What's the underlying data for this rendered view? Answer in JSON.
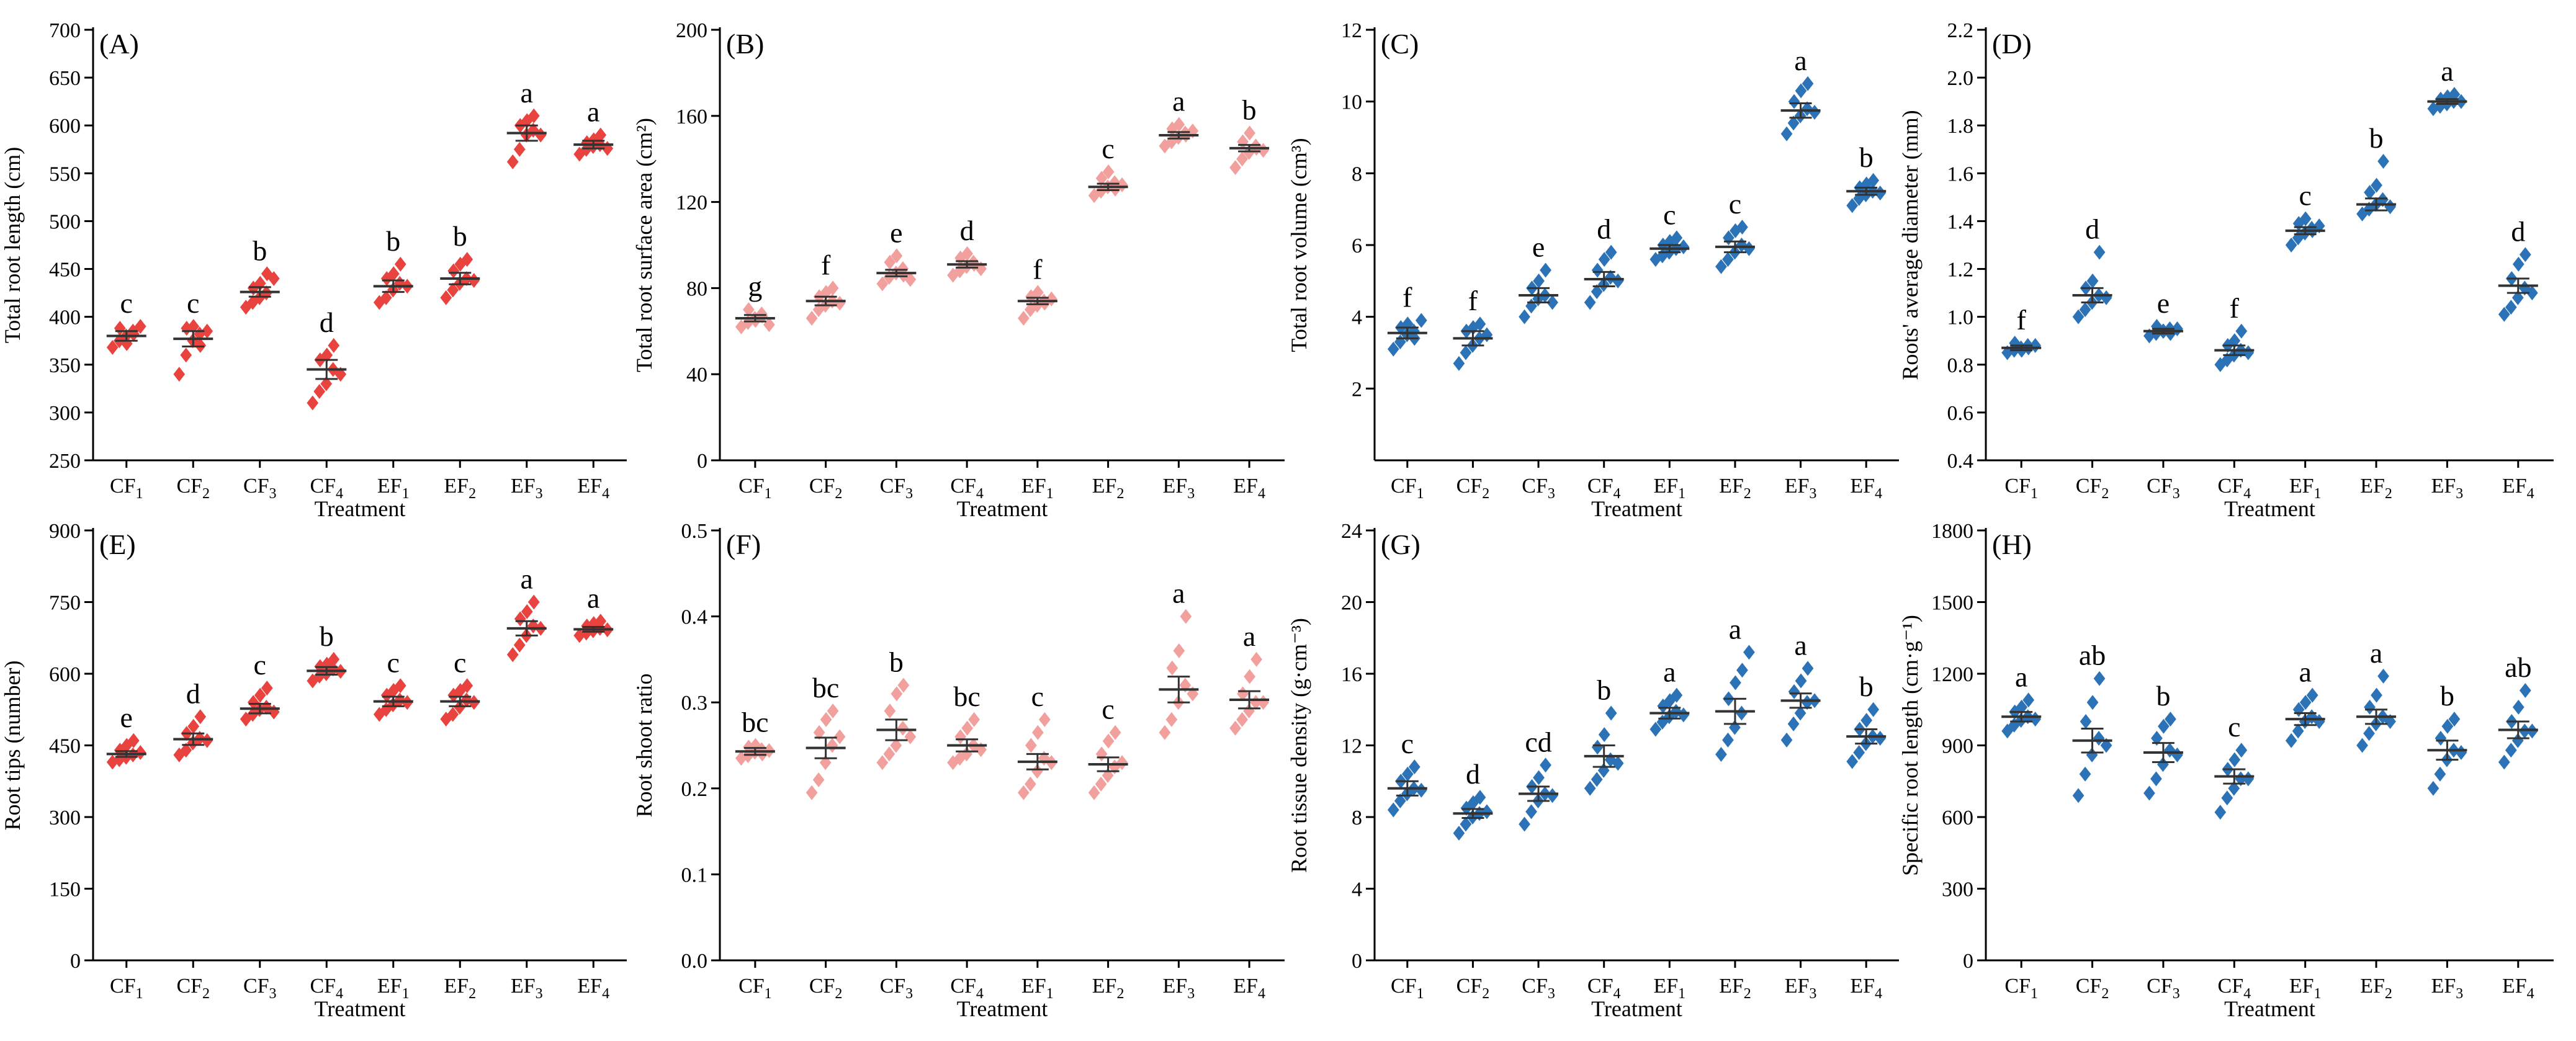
{
  "figure": {
    "description": "Eight-panel root trait comparison across treatments"
  },
  "colors": {
    "red": "#e8433f",
    "pink": "#f2a09d",
    "blue": "#2b73b6",
    "axis": "#000000"
  },
  "chart_data": [
    {
      "id": "A",
      "panel_label": "(A)",
      "type": "scatter",
      "ylabel": "Total root length (cm)",
      "xlabel": "Treatment",
      "ylim": [
        250,
        700
      ],
      "yticks": [
        250,
        300,
        350,
        400,
        450,
        500,
        550,
        600,
        650,
        700
      ],
      "categories": [
        [
          "CF",
          "1"
        ],
        [
          "CF",
          "2"
        ],
        [
          "CF",
          "3"
        ],
        [
          "CF",
          "4"
        ],
        [
          "EF",
          "1"
        ],
        [
          "EF",
          "2"
        ],
        [
          "EF",
          "3"
        ],
        [
          "EF",
          "4"
        ]
      ],
      "color": "red",
      "means": [
        380,
        377,
        426,
        345,
        432,
        440,
        592,
        580
      ],
      "sem": [
        5,
        8,
        5,
        10,
        6,
        6,
        8,
        4
      ],
      "letters": [
        "c",
        "c",
        "b",
        "d",
        "b",
        "b",
        "a",
        "a"
      ],
      "points": [
        [
          368,
          375,
          380,
          385,
          388,
          372,
          382,
          390
        ],
        [
          340,
          360,
          375,
          382,
          388,
          390,
          370,
          385
        ],
        [
          410,
          415,
          420,
          425,
          430,
          435,
          445,
          440
        ],
        [
          310,
          322,
          330,
          345,
          355,
          360,
          370,
          340
        ],
        [
          415,
          420,
          428,
          435,
          440,
          445,
          455,
          432
        ],
        [
          420,
          428,
          435,
          440,
          448,
          455,
          460,
          438
        ],
        [
          562,
          575,
          590,
          595,
          600,
          605,
          610,
          590
        ],
        [
          570,
          575,
          578,
          580,
          582,
          585,
          590,
          576
        ]
      ]
    },
    {
      "id": "B",
      "panel_label": "(B)",
      "type": "scatter",
      "ylabel": "Total root surface area (cm²)",
      "xlabel": "Treatment",
      "ylim": [
        0,
        200
      ],
      "yticks": [
        0,
        40,
        80,
        120,
        160,
        200
      ],
      "categories": [
        [
          "CF",
          "1"
        ],
        [
          "CF",
          "2"
        ],
        [
          "CF",
          "3"
        ],
        [
          "CF",
          "4"
        ],
        [
          "EF",
          "1"
        ],
        [
          "EF",
          "2"
        ],
        [
          "EF",
          "3"
        ],
        [
          "EF",
          "4"
        ]
      ],
      "color": "pink",
      "means": [
        66,
        74,
        87,
        91,
        74,
        127,
        151,
        145
      ],
      "sem": [
        1.5,
        2,
        1.5,
        1.5,
        1.5,
        1.5,
        1.5,
        1.5
      ],
      "letters": [
        "g",
        "f",
        "e",
        "d",
        "f",
        "c",
        "a",
        "b"
      ],
      "points": [
        [
          62,
          64,
          66,
          68,
          70,
          65,
          67,
          63
        ],
        [
          66,
          70,
          72,
          74,
          76,
          78,
          80,
          73
        ],
        [
          82,
          85,
          87,
          89,
          92,
          95,
          86,
          84
        ],
        [
          86,
          88,
          90,
          92,
          94,
          96,
          91,
          89
        ],
        [
          66,
          70,
          72,
          74,
          76,
          78,
          73,
          75
        ],
        [
          123,
          125,
          127,
          129,
          131,
          134,
          126,
          128
        ],
        [
          146,
          148,
          150,
          152,
          154,
          156,
          151,
          153
        ],
        [
          136,
          140,
          143,
          146,
          148,
          152,
          145,
          144
        ]
      ]
    },
    {
      "id": "C",
      "panel_label": "(C)",
      "type": "scatter",
      "ylabel": "Total root volume (cm³)",
      "xlabel": "Treatment",
      "ylim": [
        0,
        12
      ],
      "yticks": [
        2,
        4,
        6,
        8,
        10,
        12
      ],
      "categories": [
        [
          "CF",
          "1"
        ],
        [
          "CF",
          "2"
        ],
        [
          "CF",
          "3"
        ],
        [
          "CF",
          "4"
        ],
        [
          "EF",
          "1"
        ],
        [
          "EF",
          "2"
        ],
        [
          "EF",
          "3"
        ],
        [
          "EF",
          "4"
        ]
      ],
      "color": "blue",
      "means": [
        3.55,
        3.4,
        4.6,
        5.05,
        5.9,
        5.95,
        9.75,
        7.5
      ],
      "sem": [
        0.15,
        0.2,
        0.2,
        0.2,
        0.1,
        0.15,
        0.2,
        0.1
      ],
      "letters": [
        "f",
        "f",
        "e",
        "d",
        "c",
        "c",
        "a",
        "b"
      ],
      "points": [
        [
          3.1,
          3.3,
          3.5,
          3.6,
          3.7,
          3.8,
          3.4,
          3.9
        ],
        [
          2.7,
          3.0,
          3.2,
          3.4,
          3.6,
          3.7,
          3.8,
          3.5
        ],
        [
          4.0,
          4.3,
          4.5,
          4.6,
          4.8,
          5.0,
          5.3,
          4.4
        ],
        [
          4.4,
          4.7,
          4.9,
          5.1,
          5.3,
          5.6,
          5.8,
          5.0
        ],
        [
          5.6,
          5.7,
          5.8,
          5.9,
          6.0,
          6.1,
          6.2,
          5.95
        ],
        [
          5.4,
          5.6,
          5.8,
          6.0,
          6.2,
          6.4,
          6.5,
          5.9
        ],
        [
          9.1,
          9.4,
          9.6,
          9.8,
          10.0,
          10.3,
          10.5,
          9.7
        ],
        [
          7.1,
          7.3,
          7.4,
          7.5,
          7.6,
          7.7,
          7.8,
          7.45
        ]
      ]
    },
    {
      "id": "D",
      "panel_label": "(D)",
      "type": "scatter",
      "ylabel": "Roots' average diameter (mm)",
      "xlabel": "Treatment",
      "ylim": [
        0.4,
        2.2
      ],
      "yticks": [
        0.4,
        0.6,
        0.8,
        1.0,
        1.2,
        1.4,
        1.6,
        1.8,
        2.0,
        2.2
      ],
      "categories": [
        [
          "CF",
          "1"
        ],
        [
          "CF",
          "2"
        ],
        [
          "CF",
          "3"
        ],
        [
          "CF",
          "4"
        ],
        [
          "EF",
          "1"
        ],
        [
          "EF",
          "2"
        ],
        [
          "EF",
          "3"
        ],
        [
          "EF",
          "4"
        ]
      ],
      "color": "blue",
      "means": [
        0.87,
        1.09,
        0.94,
        0.86,
        1.36,
        1.47,
        1.9,
        1.13
      ],
      "sem": [
        0.01,
        0.03,
        0.01,
        0.02,
        0.015,
        0.025,
        0.01,
        0.03
      ],
      "letters": [
        "f",
        "d",
        "e",
        "f",
        "c",
        "b",
        "a",
        "d"
      ],
      "points": [
        [
          0.85,
          0.86,
          0.87,
          0.88,
          0.89,
          0.86,
          0.87,
          0.88
        ],
        [
          1.0,
          1.03,
          1.06,
          1.09,
          1.12,
          1.15,
          1.27,
          1.08
        ],
        [
          0.92,
          0.93,
          0.94,
          0.95,
          0.96,
          0.94,
          0.93,
          0.95
        ],
        [
          0.8,
          0.82,
          0.84,
          0.86,
          0.88,
          0.9,
          0.94,
          0.85
        ],
        [
          1.3,
          1.33,
          1.35,
          1.37,
          1.39,
          1.41,
          1.36,
          1.38
        ],
        [
          1.43,
          1.45,
          1.47,
          1.49,
          1.52,
          1.55,
          1.65,
          1.46
        ],
        [
          1.87,
          1.88,
          1.89,
          1.9,
          1.91,
          1.92,
          1.93,
          1.9
        ],
        [
          1.01,
          1.04,
          1.08,
          1.12,
          1.16,
          1.22,
          1.26,
          1.1
        ]
      ]
    },
    {
      "id": "E",
      "panel_label": "(E)",
      "type": "scatter",
      "ylabel": "Root tips (number)",
      "xlabel": "Treatment",
      "ylim": [
        0,
        900
      ],
      "yticks": [
        0,
        150,
        300,
        450,
        600,
        750,
        900
      ],
      "categories": [
        [
          "CF",
          "1"
        ],
        [
          "CF",
          "2"
        ],
        [
          "CF",
          "3"
        ],
        [
          "CF",
          "4"
        ],
        [
          "EF",
          "1"
        ],
        [
          "EF",
          "2"
        ],
        [
          "EF",
          "3"
        ],
        [
          "EF",
          "4"
        ]
      ],
      "color": "red",
      "means": [
        432,
        463,
        527,
        606,
        542,
        542,
        695,
        693
      ],
      "sem": [
        6,
        12,
        10,
        8,
        10,
        10,
        15,
        5
      ],
      "letters": [
        "e",
        "d",
        "c",
        "b",
        "c",
        "c",
        "a",
        "a"
      ],
      "points": [
        [
          415,
          420,
          425,
          430,
          440,
          450,
          460,
          435
        ],
        [
          430,
          440,
          455,
          465,
          475,
          490,
          510,
          460
        ],
        [
          505,
          515,
          525,
          530,
          540,
          555,
          570,
          520
        ],
        [
          585,
          595,
          600,
          610,
          615,
          620,
          630,
          605
        ],
        [
          515,
          525,
          535,
          545,
          555,
          565,
          575,
          540
        ],
        [
          505,
          515,
          530,
          545,
          555,
          565,
          575,
          540
        ],
        [
          640,
          660,
          680,
          700,
          715,
          730,
          750,
          695
        ],
        [
          680,
          685,
          690,
          695,
          700,
          705,
          710,
          692
        ]
      ]
    },
    {
      "id": "F",
      "panel_label": "(F)",
      "type": "scatter",
      "ylabel": "Root shoot ratio",
      "xlabel": "Treatment",
      "ylim": [
        0,
        0.5
      ],
      "yticks": [
        0.0,
        0.1,
        0.2,
        0.3,
        0.4,
        0.5
      ],
      "categories": [
        [
          "CF",
          "1"
        ],
        [
          "CF",
          "2"
        ],
        [
          "CF",
          "3"
        ],
        [
          "CF",
          "4"
        ],
        [
          "EF",
          "1"
        ],
        [
          "EF",
          "2"
        ],
        [
          "EF",
          "3"
        ],
        [
          "EF",
          "4"
        ]
      ],
      "color": "pink",
      "means": [
        0.243,
        0.247,
        0.268,
        0.25,
        0.231,
        0.228,
        0.315,
        0.303
      ],
      "sem": [
        0.004,
        0.012,
        0.012,
        0.007,
        0.009,
        0.008,
        0.015,
        0.01
      ],
      "letters": [
        "bc",
        "bc",
        "b",
        "bc",
        "c",
        "c",
        "a",
        "a"
      ],
      "points": [
        [
          0.235,
          0.238,
          0.242,
          0.245,
          0.248,
          0.25,
          0.24,
          0.244
        ],
        [
          0.195,
          0.21,
          0.23,
          0.25,
          0.265,
          0.28,
          0.29,
          0.26
        ],
        [
          0.23,
          0.24,
          0.25,
          0.27,
          0.29,
          0.31,
          0.32,
          0.26
        ],
        [
          0.23,
          0.235,
          0.24,
          0.25,
          0.26,
          0.27,
          0.28,
          0.245
        ],
        [
          0.195,
          0.205,
          0.22,
          0.235,
          0.25,
          0.265,
          0.28,
          0.23
        ],
        [
          0.195,
          0.205,
          0.215,
          0.225,
          0.24,
          0.255,
          0.265,
          0.23
        ],
        [
          0.265,
          0.28,
          0.3,
          0.32,
          0.34,
          0.36,
          0.4,
          0.31
        ],
        [
          0.27,
          0.28,
          0.29,
          0.3,
          0.31,
          0.33,
          0.35,
          0.3
        ]
      ]
    },
    {
      "id": "G",
      "panel_label": "(G)",
      "type": "scatter",
      "ylabel": "Root tissue density (g·cm⁻³)",
      "xlabel": "Treatment",
      "ylim": [
        0,
        24
      ],
      "yticks": [
        0,
        4,
        8,
        12,
        16,
        20,
        24
      ],
      "categories": [
        [
          "CF",
          "1"
        ],
        [
          "CF",
          "2"
        ],
        [
          "CF",
          "3"
        ],
        [
          "CF",
          "4"
        ],
        [
          "EF",
          "1"
        ],
        [
          "EF",
          "2"
        ],
        [
          "EF",
          "3"
        ],
        [
          "EF",
          "4"
        ]
      ],
      "color": "blue",
      "means": [
        9.6,
        8.2,
        9.3,
        11.4,
        13.8,
        13.9,
        14.5,
        12.5
      ],
      "sem": [
        0.4,
        0.25,
        0.4,
        0.6,
        0.3,
        0.7,
        0.4,
        0.4
      ],
      "letters": [
        "c",
        "d",
        "cd",
        "b",
        "a",
        "a",
        "a",
        "b"
      ],
      "points": [
        [
          8.4,
          8.9,
          9.3,
          9.6,
          10.0,
          10.4,
          10.8,
          9.5
        ],
        [
          7.1,
          7.6,
          8.0,
          8.2,
          8.5,
          8.8,
          9.1,
          8.3
        ],
        [
          7.6,
          8.3,
          8.9,
          9.3,
          9.7,
          10.2,
          10.9,
          9.2
        ],
        [
          9.6,
          10.1,
          10.6,
          11.2,
          11.9,
          12.6,
          13.8,
          11.0
        ],
        [
          12.9,
          13.3,
          13.6,
          13.9,
          14.2,
          14.5,
          14.8,
          13.7
        ],
        [
          11.5,
          12.3,
          13.0,
          13.8,
          14.6,
          15.5,
          16.2,
          17.2
        ],
        [
          12.3,
          13.2,
          13.8,
          14.4,
          15.0,
          15.6,
          16.3,
          14.5
        ],
        [
          11.1,
          11.6,
          12.1,
          12.5,
          12.9,
          13.4,
          14.0,
          12.4
        ]
      ]
    },
    {
      "id": "H",
      "panel_label": "(H)",
      "type": "scatter",
      "ylabel": "Specific root length (cm·g⁻¹)",
      "xlabel": "Treatment",
      "ylim": [
        0,
        1800
      ],
      "yticks": [
        0,
        300,
        600,
        900,
        1200,
        1500,
        1800
      ],
      "categories": [
        [
          "CF",
          "1"
        ],
        [
          "CF",
          "2"
        ],
        [
          "CF",
          "3"
        ],
        [
          "CF",
          "4"
        ],
        [
          "EF",
          "1"
        ],
        [
          "EF",
          "2"
        ],
        [
          "EF",
          "3"
        ],
        [
          "EF",
          "4"
        ]
      ],
      "color": "blue",
      "means": [
        1020,
        920,
        870,
        770,
        1010,
        1020,
        880,
        965
      ],
      "sem": [
        20,
        50,
        40,
        30,
        25,
        30,
        40,
        35
      ],
      "letters": [
        "a",
        "ab",
        "b",
        "c",
        "a",
        "a",
        "b",
        "ab"
      ],
      "points": [
        [
          960,
          985,
          1005,
          1020,
          1040,
          1060,
          1090,
          1010
        ],
        [
          690,
          780,
          860,
          930,
          1000,
          1080,
          1180,
          900
        ],
        [
          700,
          760,
          820,
          880,
          930,
          980,
          1010,
          860
        ],
        [
          620,
          680,
          720,
          760,
          800,
          840,
          880,
          760
        ],
        [
          920,
          960,
          1000,
          1020,
          1050,
          1080,
          1110,
          1000
        ],
        [
          900,
          950,
          990,
          1020,
          1060,
          1110,
          1190,
          1000
        ],
        [
          720,
          780,
          840,
          880,
          930,
          980,
          1010,
          870
        ],
        [
          830,
          880,
          920,
          960,
          1000,
          1060,
          1130,
          960
        ]
      ]
    }
  ]
}
